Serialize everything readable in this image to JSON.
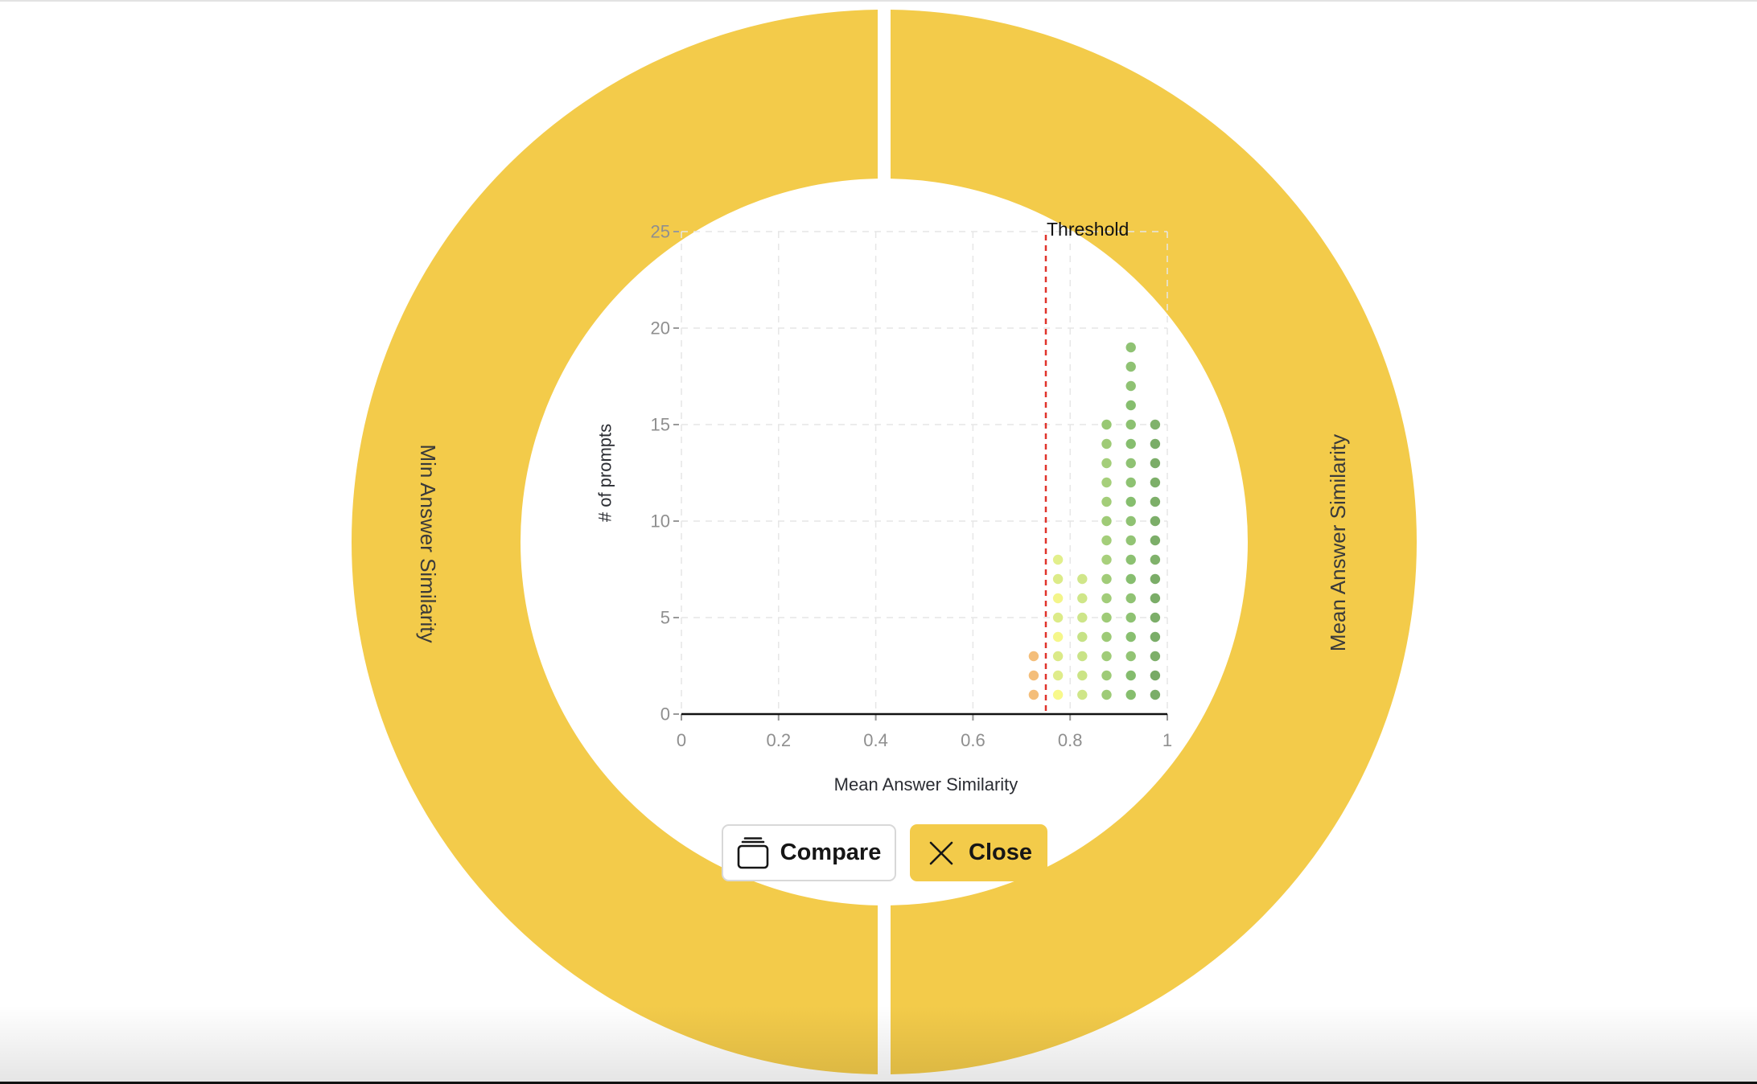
{
  "ring": {
    "color": "#F3CB4A",
    "left_label": "Min Answer Similarity",
    "right_label": "Mean Answer Similarity"
  },
  "buttons": {
    "compare": {
      "label": "Compare",
      "icon": "stack-icon"
    },
    "close": {
      "label": "Close",
      "icon": "close-icon"
    }
  },
  "chart_data": {
    "type": "scatter",
    "subtype": "dot-histogram",
    "title": "",
    "xlabel": "Mean Answer Similarity",
    "ylabel": "# of prompts",
    "xlim": [
      0,
      1
    ],
    "ylim": [
      0,
      25
    ],
    "x_ticks": [
      "0",
      "0.2",
      "0.4",
      "0.6",
      "0.8",
      "1"
    ],
    "y_ticks": [
      "0",
      "5",
      "10",
      "15",
      "20",
      "25"
    ],
    "grid": true,
    "threshold": {
      "label": "Threshold",
      "x": 0.75,
      "color": "#E0332B",
      "style": "dashed"
    },
    "bins": [
      {
        "x": 0.725,
        "count": 3,
        "colors": [
          "#F4BE7A",
          "#F4BE7A",
          "#F4BE7A"
        ]
      },
      {
        "x": 0.775,
        "count": 8,
        "colors": [
          "#F8F98A",
          "#DFEC8A",
          "#DBEA87",
          "#F5F78A",
          "#DCEB88",
          "#F3F58A",
          "#DCEB88",
          "#E2EF8B"
        ]
      },
      {
        "x": 0.825,
        "count": 7,
        "colors": [
          "#CFE689",
          "#CBE486",
          "#C9E387",
          "#C6E286",
          "#CDE589",
          "#CFE689",
          "#D0E68A"
        ]
      },
      {
        "x": 0.875,
        "count": 15,
        "colors": [
          "#9ECB77",
          "#9ECB77",
          "#A0CC78",
          "#9DCA76",
          "#9FCB77",
          "#A2CD79",
          "#A1CC78",
          "#A8D07C",
          "#A4CE7A",
          "#9FCB77",
          "#A3CD79",
          "#A6CF7B",
          "#A4CE7A",
          "#9FCB77",
          "#98C873"
        ]
      },
      {
        "x": 0.925,
        "count": 19,
        "colors": [
          "#86BE6E",
          "#84BC6D",
          "#92C474",
          "#88BF6F",
          "#8EC272",
          "#90C373",
          "#87BE6F",
          "#8CC171",
          "#92C474",
          "#8FC273",
          "#86BE6E",
          "#8EC272",
          "#8FC273",
          "#86BE6E",
          "#8CC171",
          "#86BE6E",
          "#8FC273",
          "#8FC273",
          "#8FC273"
        ]
      },
      {
        "x": 0.975,
        "count": 15,
        "colors": [
          "#7BAD68",
          "#78AA66",
          "#7DAF69",
          "#7AAD68",
          "#7CAE69",
          "#7BAD68",
          "#7BAD68",
          "#80B26B",
          "#7CAE69",
          "#7CAE69",
          "#7DAF69",
          "#7DAF69",
          "#7BAD68",
          "#7AAD68",
          "#80B26B"
        ]
      }
    ]
  }
}
